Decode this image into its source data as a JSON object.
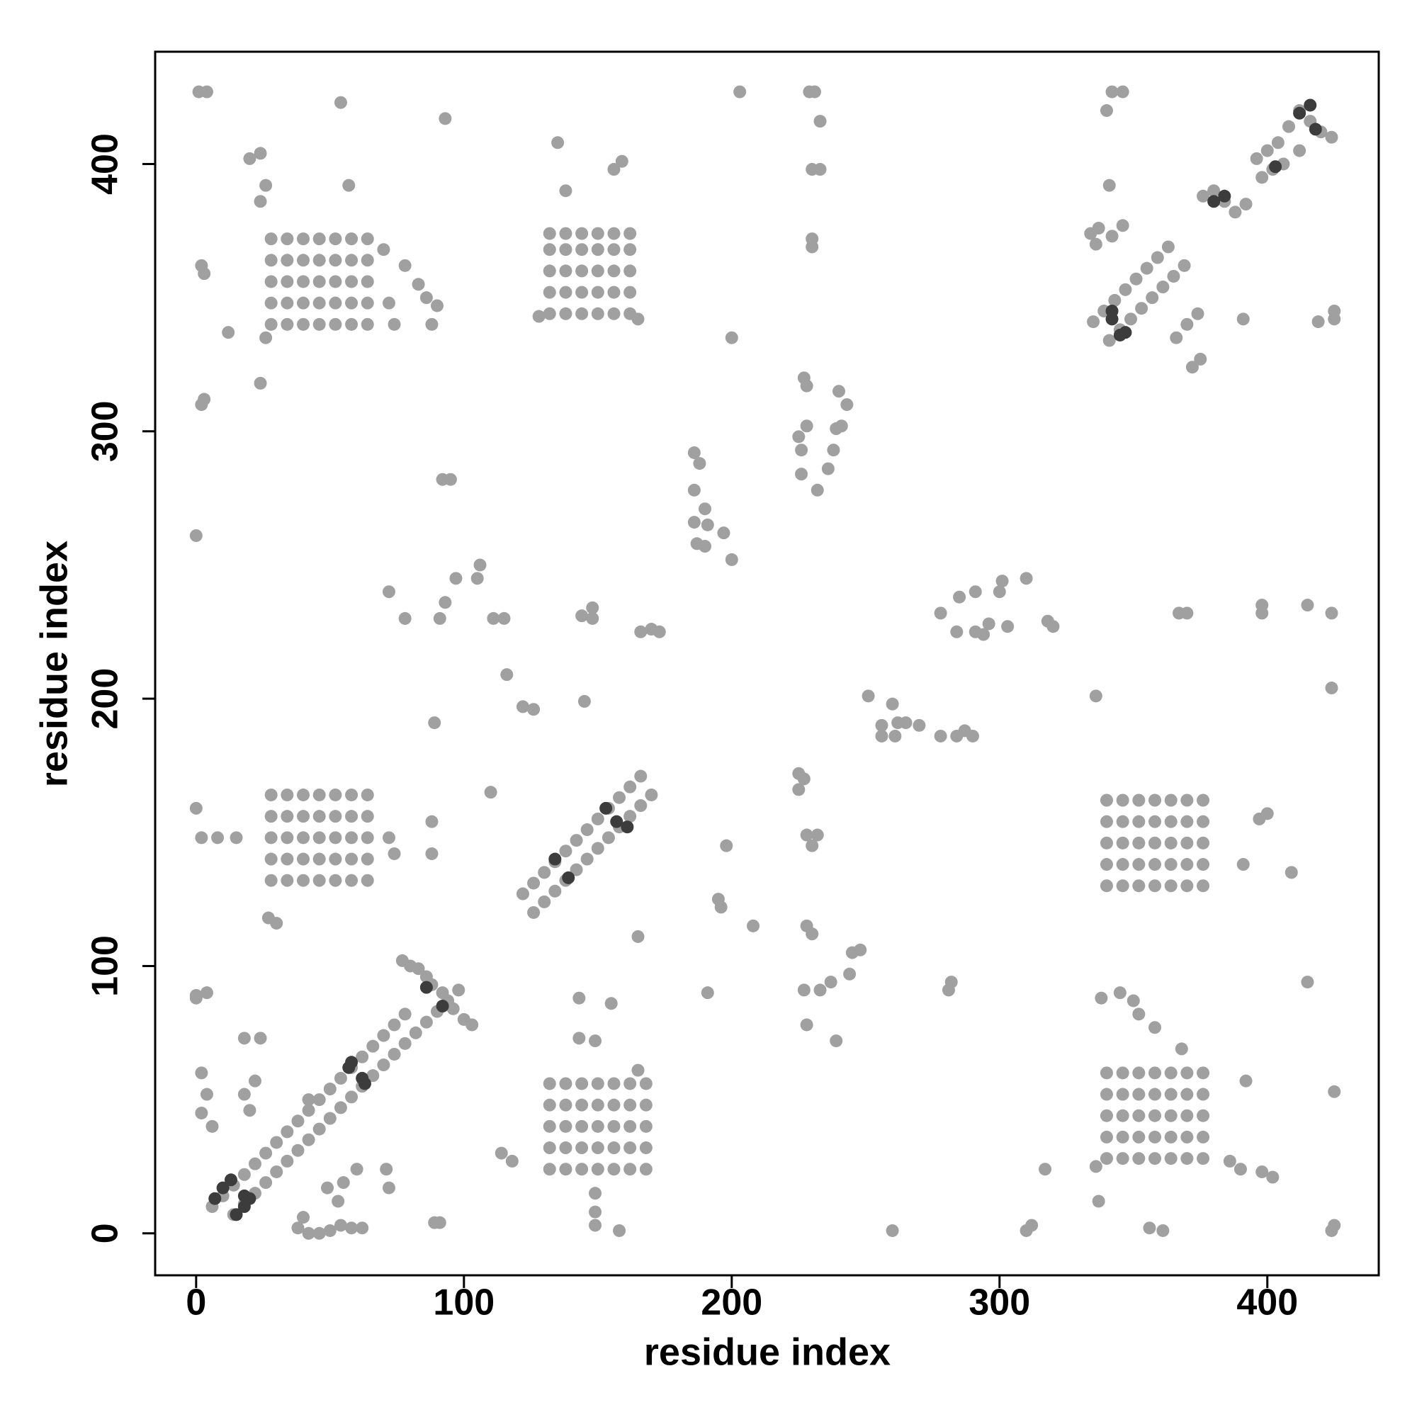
{
  "chart_data": {
    "type": "scatter",
    "x_label": "residue index",
    "y_label": "residue index",
    "xlim": [
      -15.3,
      441.6
    ],
    "ylim": [
      -15.7,
      442
    ],
    "xticks": [
      0,
      100,
      200,
      300,
      400
    ],
    "yticks": [
      0,
      100,
      200,
      300,
      400
    ],
    "series": [
      {
        "color": "#a0a0a0",
        "x": [
          6,
          10,
          14,
          18,
          22,
          26,
          30,
          34,
          38,
          42,
          46,
          50,
          54,
          58,
          62,
          66,
          70,
          74,
          78,
          14,
          18,
          22,
          26,
          30,
          34,
          38,
          42,
          46,
          50,
          54,
          58,
          62,
          66,
          70,
          74,
          78,
          82,
          86,
          90,
          94,
          98,
          77,
          80,
          83,
          86,
          88,
          92,
          96,
          100,
          103,
          122,
          126,
          130,
          134,
          138,
          142,
          146,
          150,
          154,
          158,
          162,
          166,
          126,
          130,
          134,
          138,
          142,
          146,
          150,
          154,
          158,
          162,
          166,
          170,
          335,
          339,
          343,
          347,
          351,
          355,
          359,
          363,
          341,
          345,
          349,
          353,
          357,
          361,
          365,
          369,
          376,
          380,
          384,
          388,
          392,
          396,
          400,
          404,
          408,
          412,
          416,
          420,
          424,
          398,
          402,
          406,
          412,
          28,
          34,
          40,
          46,
          52,
          58,
          64,
          28,
          34,
          40,
          46,
          52,
          58,
          64,
          28,
          34,
          40,
          46,
          52,
          58,
          64,
          28,
          34,
          40,
          46,
          52,
          58,
          64,
          28,
          34,
          40,
          46,
          52,
          58,
          64,
          132,
          138,
          144,
          150,
          156,
          162,
          132,
          138,
          144,
          150,
          156,
          162,
          132,
          138,
          144,
          150,
          156,
          162,
          132,
          138,
          144,
          150,
          156,
          162,
          132,
          138,
          144,
          150,
          156,
          162,
          28,
          34,
          40,
          46,
          52,
          58,
          64,
          28,
          34,
          40,
          46,
          52,
          58,
          64,
          28,
          34,
          40,
          46,
          52,
          58,
          64,
          28,
          34,
          40,
          46,
          52,
          58,
          64,
          28,
          34,
          40,
          46,
          52,
          58,
          64,
          340,
          346,
          352,
          358,
          364,
          370,
          376,
          340,
          346,
          352,
          358,
          364,
          370,
          376,
          340,
          346,
          352,
          358,
          364,
          370,
          376,
          340,
          346,
          352,
          358,
          364,
          370,
          376,
          340,
          346,
          352,
          358,
          364,
          370,
          376,
          132,
          138,
          144,
          150,
          156,
          162,
          168,
          132,
          138,
          144,
          150,
          156,
          162,
          168,
          132,
          138,
          144,
          150,
          156,
          162,
          168,
          132,
          138,
          144,
          150,
          156,
          162,
          168,
          132,
          138,
          144,
          150,
          156,
          162,
          168,
          340,
          346,
          352,
          358,
          364,
          370,
          376,
          340,
          346,
          352,
          358,
          364,
          370,
          376,
          340,
          346,
          352,
          358,
          364,
          370,
          376,
          340,
          346,
          352,
          358,
          364,
          370,
          376,
          340,
          346,
          352,
          358,
          364,
          370,
          376,
          24,
          26,
          12,
          24,
          26,
          20,
          24,
          54,
          57,
          70,
          72,
          74,
          78,
          83,
          86,
          88,
          90,
          135,
          138,
          156,
          159,
          128,
          165,
          0,
          2,
          8,
          15,
          27,
          30,
          72,
          74,
          88,
          88,
          397,
          400,
          409,
          391,
          143,
          155,
          143,
          149,
          149,
          149,
          149,
          158,
          165,
          338,
          345,
          352,
          358,
          368,
          350,
          336,
          337,
          386,
          390,
          392,
          398,
          402,
          425,
          38,
          42,
          46,
          50,
          54,
          58,
          62,
          40,
          89,
          91,
          42,
          49,
          55,
          60,
          53,
          71,
          72,
          18,
          24,
          22,
          18,
          20,
          2,
          4,
          2,
          6,
          0,
          4,
          114,
          118,
          312,
          310,
          260,
          356,
          361,
          425,
          424,
          317,
          0,
          2,
          3,
          92,
          95,
          72,
          78,
          91,
          93,
          97,
          105,
          106,
          111,
          115,
          116,
          122,
          126,
          110,
          145,
          144,
          148,
          148,
          166,
          170,
          173,
          89,
          165,
          198,
          195,
          196,
          208,
          191,
          186,
          188,
          186,
          186,
          190,
          191,
          187,
          190,
          197,
          200,
          200,
          203,
          229,
          231,
          233,
          230,
          233,
          230,
          230,
          227,
          228,
          225,
          226,
          226,
          228,
          232,
          236,
          239,
          241,
          238,
          240,
          243,
          225,
          227,
          225,
          228,
          232,
          230,
          228,
          230,
          227,
          233,
          237,
          228,
          239,
          244,
          245,
          248,
          251,
          256,
          260,
          262,
          265,
          256,
          261,
          270,
          278,
          284,
          287,
          290,
          281,
          282,
          278,
          285,
          284,
          291,
          294,
          296,
          291,
          300,
          301,
          303,
          310,
          318,
          320,
          337,
          334,
          340,
          342,
          346,
          341,
          346,
          342,
          336,
          366,
          370,
          374,
          372,
          375,
          391,
          419,
          425,
          425,
          336,
          367,
          370,
          398,
          398,
          415,
          424,
          424,
          415,
          1,
          4,
          2,
          3,
          93,
          0
        ],
        "values": [
          10,
          14,
          18,
          22,
          26,
          30,
          34,
          38,
          42,
          46,
          50,
          54,
          58,
          62,
          66,
          70,
          74,
          78,
          82,
          7,
          11,
          15,
          19,
          23,
          27,
          31,
          35,
          39,
          43,
          47,
          51,
          55,
          59,
          63,
          67,
          71,
          75,
          79,
          83,
          87,
          91,
          102,
          100,
          99,
          96,
          93,
          90,
          84,
          80,
          78,
          127,
          131,
          135,
          139,
          143,
          147,
          151,
          155,
          159,
          163,
          167,
          171,
          120,
          124,
          128,
          132,
          136,
          140,
          144,
          148,
          152,
          156,
          160,
          164,
          341,
          345,
          349,
          353,
          357,
          361,
          365,
          369,
          334,
          338,
          342,
          346,
          350,
          354,
          358,
          362,
          388,
          390,
          386,
          382,
          385,
          402,
          405,
          408,
          414,
          420,
          416,
          412,
          410,
          395,
          398,
          400,
          405,
          340,
          340,
          340,
          340,
          340,
          340,
          340,
          348,
          348,
          348,
          348,
          348,
          348,
          348,
          356,
          356,
          356,
          356,
          356,
          356,
          356,
          364,
          364,
          364,
          364,
          364,
          364,
          364,
          372,
          372,
          372,
          372,
          372,
          372,
          372,
          344,
          344,
          344,
          344,
          344,
          344,
          352,
          352,
          352,
          352,
          352,
          352,
          360,
          360,
          360,
          360,
          360,
          360,
          368,
          368,
          368,
          368,
          368,
          368,
          374,
          374,
          374,
          374,
          374,
          374,
          132,
          132,
          132,
          132,
          132,
          132,
          132,
          140,
          140,
          140,
          140,
          140,
          140,
          140,
          148,
          148,
          148,
          148,
          148,
          148,
          148,
          156,
          156,
          156,
          156,
          156,
          156,
          156,
          164,
          164,
          164,
          164,
          164,
          164,
          164,
          130,
          130,
          130,
          130,
          130,
          130,
          130,
          138,
          138,
          138,
          138,
          138,
          138,
          138,
          146,
          146,
          146,
          146,
          146,
          146,
          146,
          154,
          154,
          154,
          154,
          154,
          154,
          154,
          162,
          162,
          162,
          162,
          162,
          162,
          162,
          24,
          24,
          24,
          24,
          24,
          24,
          24,
          32,
          32,
          32,
          32,
          32,
          32,
          32,
          40,
          40,
          40,
          40,
          40,
          40,
          40,
          48,
          48,
          48,
          48,
          48,
          48,
          48,
          56,
          56,
          56,
          56,
          56,
          56,
          56,
          28,
          28,
          28,
          28,
          28,
          28,
          28,
          36,
          36,
          36,
          36,
          36,
          36,
          36,
          44,
          44,
          44,
          44,
          44,
          44,
          44,
          52,
          52,
          52,
          52,
          52,
          52,
          52,
          60,
          60,
          60,
          60,
          60,
          60,
          60,
          318,
          335,
          337,
          386,
          392,
          402,
          404,
          423,
          392,
          368,
          348,
          340,
          362,
          355,
          350,
          340,
          347,
          408,
          390,
          398,
          401,
          343,
          342,
          159,
          148,
          148,
          148,
          118,
          116,
          148,
          142,
          154,
          142,
          155,
          157,
          135,
          138,
          88,
          86,
          73,
          72,
          15,
          8,
          3,
          1,
          61,
          88,
          90,
          82,
          77,
          69,
          87,
          25,
          12,
          27,
          24,
          57,
          23,
          21,
          53,
          2,
          0,
          0,
          1,
          3,
          2,
          2,
          6,
          4,
          4,
          50,
          17,
          19,
          24,
          12,
          24,
          17,
          73,
          73,
          57,
          52,
          46,
          60,
          52,
          45,
          40,
          89,
          90,
          30,
          27,
          3,
          1,
          1,
          2,
          1,
          3,
          1,
          24,
          261,
          310,
          312,
          282,
          282,
          240,
          230,
          230,
          236,
          245,
          245,
          250,
          230,
          230,
          209,
          197,
          196,
          165,
          199,
          231,
          234,
          230,
          225,
          226,
          225,
          191,
          111,
          145,
          125,
          122,
          115,
          90,
          292,
          288,
          278,
          266,
          271,
          265,
          258,
          257,
          262,
          252,
          335,
          427,
          427,
          427,
          416,
          398,
          398,
          372,
          369,
          320,
          317,
          298,
          293,
          284,
          302,
          278,
          286,
          301,
          302,
          293,
          315,
          310,
          172,
          170,
          166,
          149,
          149,
          145,
          115,
          112,
          91,
          91,
          94,
          78,
          72,
          97,
          105,
          106,
          201,
          190,
          198,
          191,
          191,
          186,
          186,
          190,
          186,
          186,
          188,
          186,
          91,
          94,
          232,
          238,
          225,
          225,
          224,
          228,
          240,
          240,
          244,
          227,
          245,
          229,
          227,
          376,
          374,
          420,
          427,
          427,
          392,
          377,
          373,
          370,
          335,
          340,
          344,
          324,
          327,
          342,
          341,
          345,
          342,
          201,
          232,
          232,
          235,
          232,
          235,
          232,
          204,
          94,
          427,
          427,
          362,
          359,
          417,
          88
        ]
      },
      {
        "color": "#3c3c3c",
        "x": [
          7,
          10,
          13,
          18,
          15,
          18,
          20,
          57,
          58,
          63,
          62,
          86,
          92,
          134,
          139,
          153,
          157,
          161,
          342,
          345,
          347,
          380,
          384,
          412,
          416,
          418,
          403,
          342
        ],
        "values": [
          13,
          17,
          20,
          14,
          7,
          10,
          13,
          62,
          64,
          56,
          58,
          92,
          85,
          140,
          133,
          159,
          154,
          152,
          342,
          336,
          337,
          386,
          388,
          419,
          422,
          413,
          399,
          345
        ]
      }
    ]
  }
}
